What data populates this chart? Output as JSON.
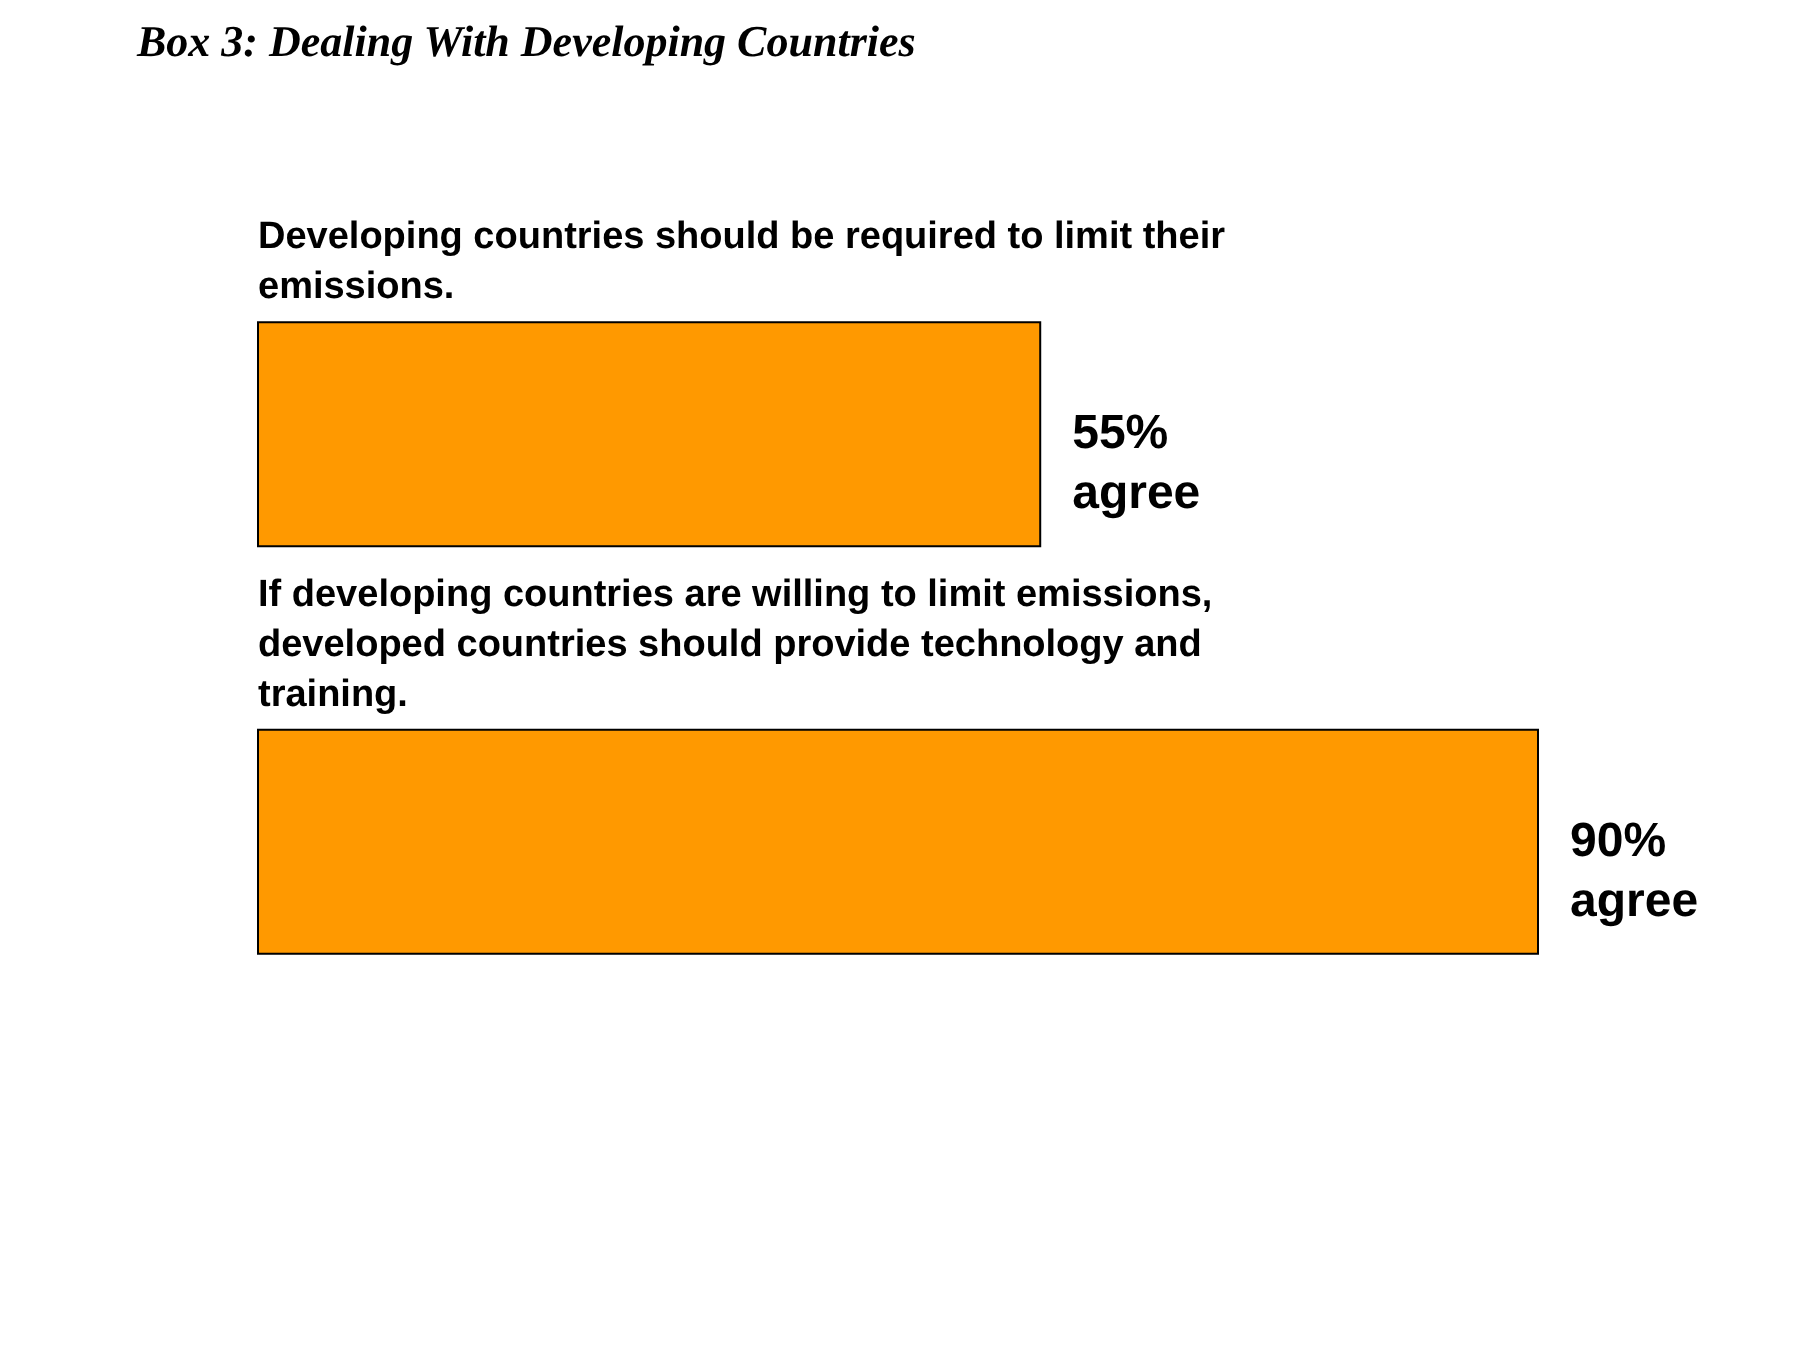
{
  "chart_data": {
    "type": "bar",
    "orientation": "horizontal",
    "title": "Box 3: Dealing With Developing Countries",
    "categories": [
      "Developing countries should be required to limit their emissions.",
      "If developing countries are willing to limit emissions, developed countries should provide technology and training."
    ],
    "values": [
      55,
      90
    ],
    "value_labels": [
      "55% agree",
      "90% agree"
    ],
    "color": "#ff9900"
  }
}
